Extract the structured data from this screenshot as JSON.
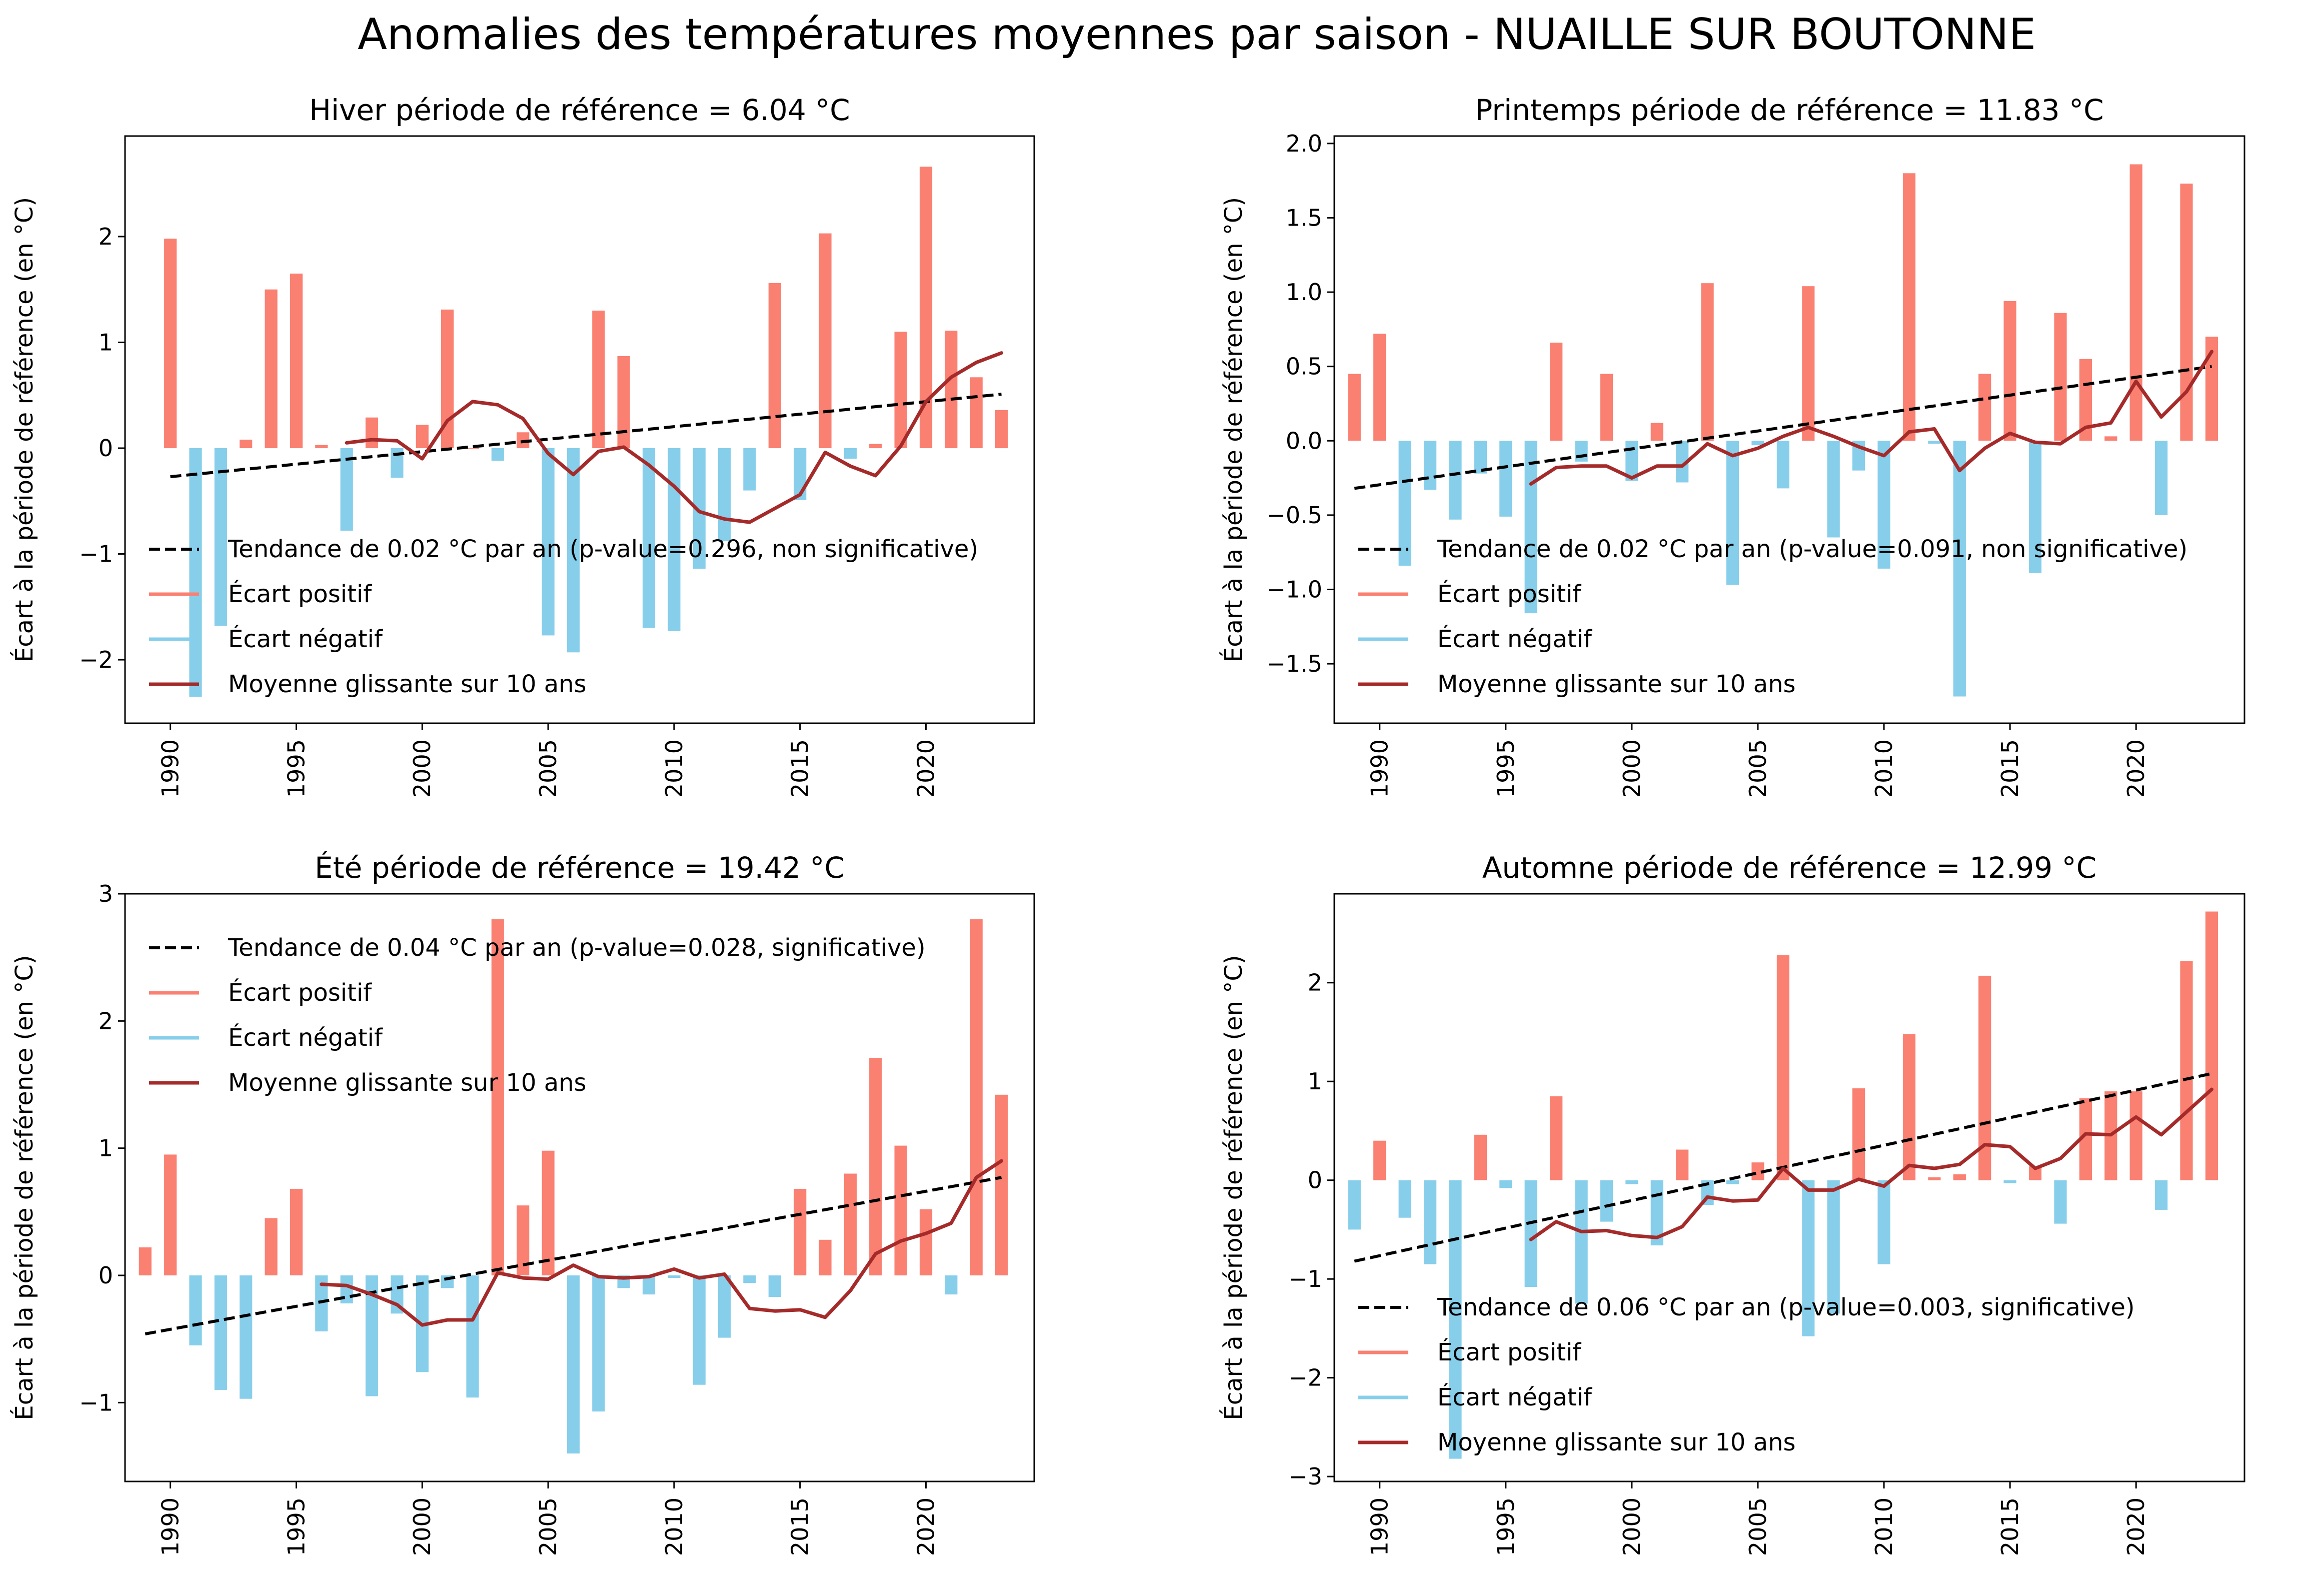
{
  "figure": {
    "title": "Anomalies des températures moyennes par saison - NUAILLE SUR BOUTONNE"
  },
  "colors": {
    "positive": "#fa8072",
    "negative": "#87ceeb",
    "rolling": "#a52a2a",
    "trend": "#000000",
    "axes": "#000000",
    "background": "#ffffff"
  },
  "chart_data": [
    {
      "type": "bar",
      "title": "Hiver période de référence = 6.04 °C",
      "ylabel": "Écart à la période de référence (en °C)",
      "xlim": [
        1988.2,
        2024.3
      ],
      "ylim": [
        -2.6,
        2.95
      ],
      "xticks": [
        1990,
        1995,
        2000,
        2005,
        2010,
        2015,
        2020
      ],
      "yticks": [
        -2,
        -1,
        0,
        1,
        2
      ],
      "ytick_labels": [
        "−2",
        "−1",
        "0",
        "1",
        "2"
      ],
      "legend_position": "lower-left",
      "legend": [
        "Tendance de 0.02 °C par an (p-value=0.296, non significative)",
        "Écart positif",
        "Écart négatif",
        "Moyenne glissante sur 10 ans"
      ],
      "years": [
        1990,
        1991,
        1992,
        1993,
        1994,
        1995,
        1996,
        1997,
        1998,
        1999,
        2000,
        2001,
        2002,
        2003,
        2004,
        2005,
        2006,
        2007,
        2008,
        2009,
        2010,
        2011,
        2012,
        2013,
        2014,
        2015,
        2016,
        2017,
        2018,
        2019,
        2020,
        2021,
        2022,
        2023
      ],
      "values": [
        1.98,
        -2.35,
        -1.68,
        0.08,
        1.5,
        1.65,
        0.03,
        -0.78,
        0.29,
        -0.28,
        0.22,
        1.31,
        0.0,
        -0.12,
        0.15,
        -1.77,
        -1.93,
        1.3,
        0.87,
        -1.7,
        -1.73,
        -1.14,
        -0.88,
        -0.4,
        1.56,
        -0.49,
        2.03,
        -0.1,
        0.04,
        1.1,
        2.66,
        1.11,
        0.67,
        0.36
      ],
      "rolling_years": [
        1997,
        1998,
        1999,
        2000,
        2001,
        2002,
        2003,
        2004,
        2005,
        2006,
        2007,
        2008,
        2009,
        2010,
        2011,
        2012,
        2013,
        2014,
        2015,
        2016,
        2017,
        2018,
        2019,
        2020,
        2021,
        2022,
        2023
      ],
      "rolling": [
        0.05,
        0.08,
        0.07,
        -0.1,
        0.26,
        0.44,
        0.41,
        0.28,
        -0.05,
        -0.25,
        -0.03,
        0.01,
        -0.16,
        -0.36,
        -0.6,
        -0.67,
        -0.7,
        -0.57,
        -0.44,
        -0.04,
        -0.17,
        -0.26,
        0.02,
        0.44,
        0.67,
        0.81,
        0.9
      ],
      "trend": {
        "x": [
          1990,
          2023
        ],
        "y": [
          -0.27,
          0.51
        ]
      }
    },
    {
      "type": "bar",
      "title": "Printemps période de référence = 11.83 °C",
      "ylabel": "Écart à la période de référence (en °C)",
      "xlim": [
        1988.2,
        2024.3
      ],
      "ylim": [
        -1.9,
        2.05
      ],
      "xticks": [
        1990,
        1995,
        2000,
        2005,
        2010,
        2015,
        2020
      ],
      "yticks": [
        -1.5,
        -1.0,
        -0.5,
        0.0,
        0.5,
        1.0,
        1.5,
        2.0
      ],
      "ytick_labels": [
        "−1.5",
        "−1.0",
        "−0.5",
        "0.0",
        "0.5",
        "1.0",
        "1.5",
        "2.0"
      ],
      "legend_position": "lower-left",
      "legend": [
        "Tendance de 0.02 °C par an (p-value=0.091, non significative)",
        "Écart positif",
        "Écart négatif",
        "Moyenne glissante sur 10 ans"
      ],
      "years": [
        1989,
        1990,
        1991,
        1992,
        1993,
        1994,
        1995,
        1996,
        1997,
        1998,
        1999,
        2000,
        2001,
        2002,
        2003,
        2004,
        2005,
        2006,
        2007,
        2008,
        2009,
        2010,
        2011,
        2012,
        2013,
        2014,
        2015,
        2016,
        2017,
        2018,
        2019,
        2020,
        2021,
        2022,
        2023
      ],
      "values": [
        0.45,
        0.72,
        -0.84,
        -0.33,
        -0.53,
        -0.22,
        -0.51,
        -1.16,
        0.66,
        -0.14,
        0.45,
        -0.27,
        0.12,
        -0.28,
        1.06,
        -0.97,
        -0.03,
        -0.32,
        1.04,
        -0.65,
        -0.2,
        -0.86,
        1.8,
        -0.02,
        -1.72,
        0.45,
        0.94,
        -0.89,
        0.86,
        0.55,
        0.03,
        1.86,
        -0.5,
        1.73,
        0.7
      ],
      "rolling_years": [
        1996,
        1997,
        1998,
        1999,
        2000,
        2001,
        2002,
        2003,
        2004,
        2005,
        2006,
        2007,
        2008,
        2009,
        2010,
        2011,
        2012,
        2013,
        2014,
        2015,
        2016,
        2017,
        2018,
        2019,
        2020,
        2021,
        2022,
        2023
      ],
      "rolling": [
        -0.29,
        -0.18,
        -0.17,
        -0.17,
        -0.25,
        -0.17,
        -0.17,
        -0.02,
        -0.1,
        -0.05,
        0.03,
        0.09,
        0.03,
        -0.04,
        -0.1,
        0.06,
        0.08,
        -0.2,
        -0.05,
        0.05,
        -0.01,
        -0.02,
        0.09,
        0.12,
        0.4,
        0.16,
        0.33,
        0.6
      ],
      "trend": {
        "x": [
          1989,
          2023
        ],
        "y": [
          -0.32,
          0.5
        ]
      }
    },
    {
      "type": "bar",
      "title": "Été période de référence = 19.42 °C",
      "ylabel": "Écart à la période de référence (en °C)",
      "xlim": [
        1988.2,
        2024.3
      ],
      "ylim": [
        -1.62,
        3.0
      ],
      "xticks": [
        1990,
        1995,
        2000,
        2005,
        2010,
        2015,
        2020
      ],
      "yticks": [
        -1,
        0,
        1,
        2,
        3
      ],
      "ytick_labels": [
        "−1",
        "0",
        "1",
        "2",
        "3"
      ],
      "legend_position": "upper-left",
      "legend": [
        "Tendance de 0.04 °C par an (p-value=0.028, significative)",
        "Écart positif",
        "Écart négatif",
        "Moyenne glissante sur 10 ans"
      ],
      "years": [
        1989,
        1990,
        1991,
        1992,
        1993,
        1994,
        1995,
        1996,
        1997,
        1998,
        1999,
        2000,
        2001,
        2002,
        2003,
        2004,
        2005,
        2006,
        2007,
        2008,
        2009,
        2010,
        2011,
        2012,
        2013,
        2014,
        2015,
        2016,
        2017,
        2018,
        2019,
        2020,
        2021,
        2022,
        2023
      ],
      "values": [
        0.22,
        0.95,
        -0.55,
        -0.9,
        -0.97,
        0.45,
        0.68,
        -0.44,
        -0.22,
        -0.95,
        -0.3,
        -0.76,
        -0.1,
        -0.96,
        2.8,
        0.55,
        0.98,
        -1.4,
        -1.07,
        -0.1,
        -0.15,
        -0.02,
        -0.86,
        -0.49,
        -0.06,
        -0.17,
        0.68,
        0.28,
        0.8,
        1.71,
        1.02,
        0.52,
        -0.15,
        2.8,
        1.42
      ],
      "rolling_years": [
        1996,
        1997,
        1998,
        1999,
        2000,
        2001,
        2002,
        2003,
        2004,
        2005,
        2006,
        2007,
        2008,
        2009,
        2010,
        2011,
        2012,
        2013,
        2014,
        2015,
        2016,
        2017,
        2018,
        2019,
        2020,
        2021,
        2022,
        2023
      ],
      "rolling": [
        -0.07,
        -0.08,
        -0.15,
        -0.23,
        -0.39,
        -0.35,
        -0.35,
        0.02,
        -0.02,
        -0.03,
        0.08,
        -0.01,
        -0.02,
        -0.01,
        0.05,
        -0.02,
        0.01,
        -0.26,
        -0.28,
        -0.27,
        -0.33,
        -0.12,
        0.17,
        0.27,
        0.33,
        0.41,
        0.77,
        0.9
      ],
      "trend": {
        "x": [
          1989,
          2023
        ],
        "y": [
          -0.46,
          0.77
        ]
      }
    },
    {
      "type": "bar",
      "title": "Automne période de référence = 12.99 °C",
      "ylabel": "Écart à la période de référence (en °C)",
      "xlim": [
        1988.2,
        2024.3
      ],
      "ylim": [
        -3.05,
        2.9
      ],
      "xticks": [
        1990,
        1995,
        2000,
        2005,
        2010,
        2015,
        2020
      ],
      "yticks": [
        -3,
        -2,
        -1,
        0,
        1,
        2
      ],
      "ytick_labels": [
        "−3",
        "−2",
        "−1",
        "0",
        "1",
        "2"
      ],
      "legend_position": "lower-left",
      "legend": [
        "Tendance de 0.06 °C par an (p-value=0.003, significative)",
        "Écart positif",
        "Écart négatif",
        "Moyenne glissante sur 10 ans"
      ],
      "years": [
        1989,
        1990,
        1991,
        1992,
        1993,
        1994,
        1995,
        1996,
        1997,
        1998,
        1999,
        2000,
        2001,
        2002,
        2003,
        2004,
        2005,
        2006,
        2007,
        2008,
        2009,
        2010,
        2011,
        2012,
        2013,
        2014,
        2015,
        2016,
        2017,
        2018,
        2019,
        2020,
        2021,
        2022,
        2023
      ],
      "values": [
        -0.5,
        0.4,
        -0.38,
        -0.85,
        -2.82,
        0.46,
        -0.08,
        -1.08,
        0.85,
        -1.25,
        -0.42,
        -0.04,
        -0.66,
        0.31,
        -0.25,
        -0.04,
        0.18,
        2.28,
        -1.58,
        -1.35,
        0.93,
        -0.85,
        1.48,
        0.03,
        0.06,
        2.07,
        -0.03,
        0.14,
        -0.44,
        0.83,
        0.9,
        0.9,
        -0.3,
        2.22,
        2.72
      ],
      "rolling_years": [
        1996,
        1997,
        1998,
        1999,
        2000,
        2001,
        2002,
        2003,
        2004,
        2005,
        2006,
        2007,
        2008,
        2009,
        2010,
        2011,
        2012,
        2013,
        2014,
        2015,
        2016,
        2017,
        2018,
        2019,
        2020,
        2021,
        2022,
        2023
      ],
      "rolling": [
        -0.6,
        -0.42,
        -0.52,
        -0.51,
        -0.56,
        -0.58,
        -0.47,
        -0.17,
        -0.21,
        -0.2,
        0.12,
        -0.1,
        -0.1,
        0.01,
        -0.06,
        0.15,
        0.12,
        0.16,
        0.36,
        0.34,
        0.12,
        0.22,
        0.47,
        0.46,
        0.64,
        0.46,
        0.69,
        0.92
      ],
      "trend": {
        "x": [
          1989,
          2023
        ],
        "y": [
          -0.82,
          1.08
        ]
      }
    }
  ]
}
